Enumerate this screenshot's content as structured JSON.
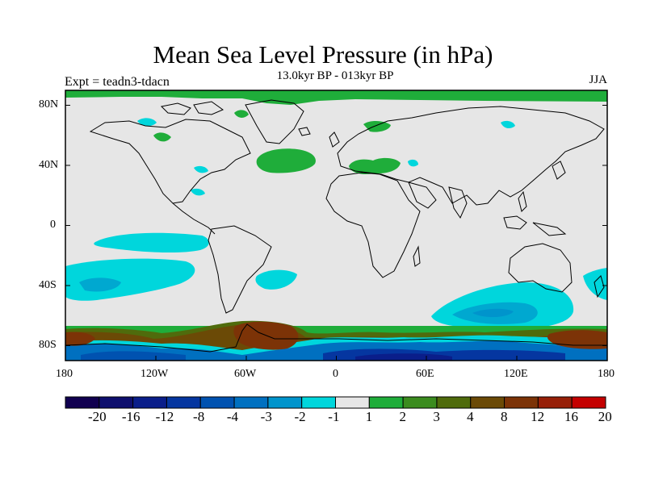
{
  "title": "Mean Sea Level Pressure (in hPa)",
  "subtitle": "13.0kyr BP - 013kyr BP",
  "expt_label": "Expt = teadn3-tdacn",
  "season": "JJA",
  "map": {
    "projection": "cylindrical equidistant",
    "lon_range": [
      -180,
      180
    ],
    "lat_range": [
      -90,
      90
    ],
    "lat_tick_labels": [
      "80N",
      "40N",
      "0",
      "40S",
      "80S"
    ],
    "lon_tick_labels": [
      "180",
      "120W",
      "60W",
      "0",
      "60E",
      "120E",
      "180"
    ],
    "background_color": "#e6e6e6",
    "coastline_color": "#000000"
  },
  "colorbar": {
    "labels": [
      "-20",
      "-16",
      "-12",
      "-8",
      "-4",
      "-3",
      "-2",
      "-1",
      "1",
      "2",
      "3",
      "4",
      "8",
      "12",
      "16",
      "20"
    ],
    "colors": [
      "#110050",
      "#0e0f6e",
      "#0a1e8a",
      "#0536a0",
      "#0052b0",
      "#0070c0",
      "#0094cc",
      "#00d6dc",
      "#e6e6e6",
      "#1fad3a",
      "#3b8c1f",
      "#4f6b0c",
      "#6b4a06",
      "#7c3307",
      "#972008",
      "#c40000"
    ]
  }
}
